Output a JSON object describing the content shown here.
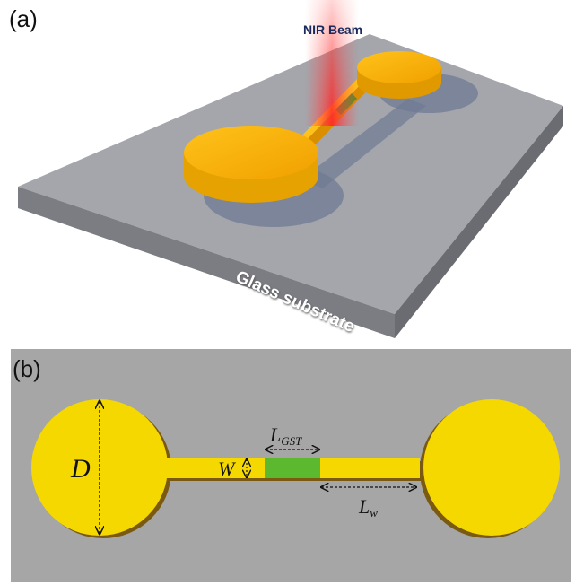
{
  "panel_a": {
    "label": "(a)",
    "beam_label": "NIR Beam",
    "substrate_label": "Glass substrate"
  },
  "panel_b": {
    "label": "(b)",
    "dimension_D": "D",
    "dimension_W": "W",
    "dimension_LGST_main": "L",
    "dimension_LGST_sub": "GST",
    "dimension_Lw_main": "L",
    "dimension_Lw_sub": "w"
  },
  "colors": {
    "gold": "#f5d800",
    "gold_3d": "#f2a900",
    "gst_green": "#5cb82e",
    "substrate": "#9a9ca3",
    "background_b": "#a6a6a6",
    "beam": "#ff2a2a"
  }
}
